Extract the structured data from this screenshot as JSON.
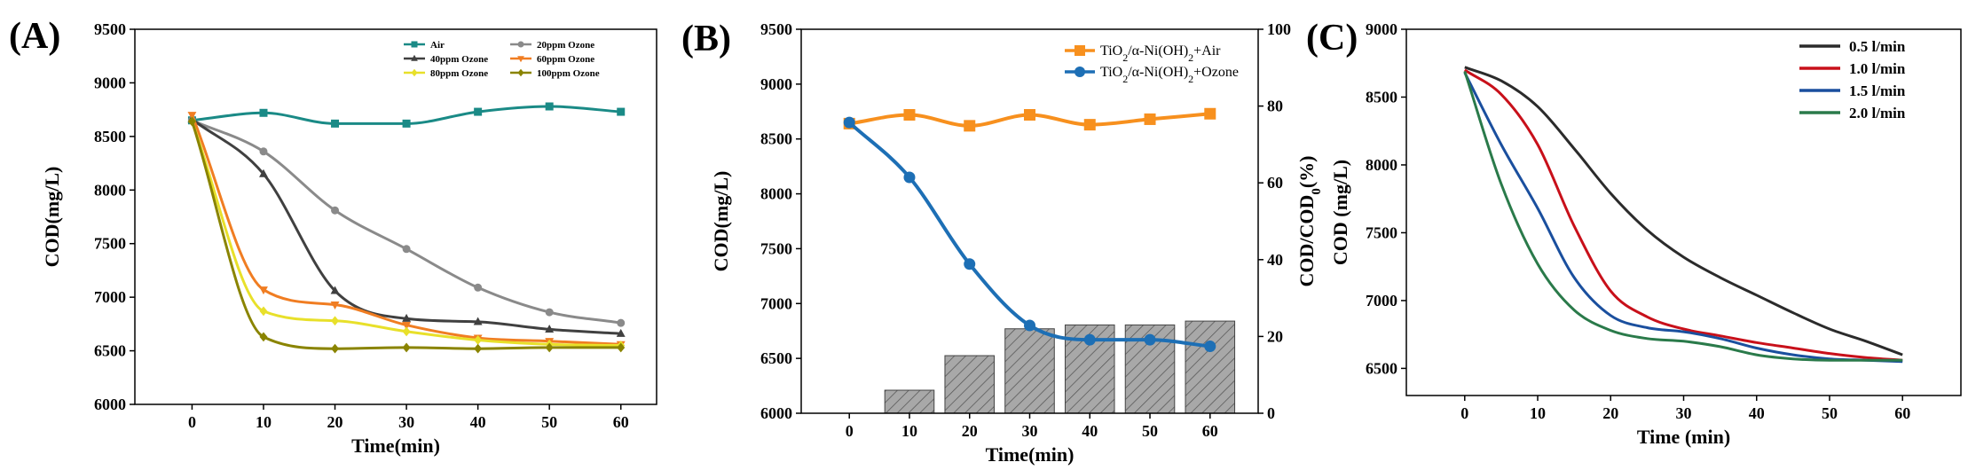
{
  "chart_data": [
    {
      "type": "line",
      "panel_label": "(A)",
      "xlabel": "Time(min)",
      "ylabel": "COD(mg/L)",
      "xlim": [
        -8,
        65
      ],
      "ylim": [
        6000,
        9500
      ],
      "xticks": [
        0,
        10,
        20,
        30,
        40,
        50,
        60
      ],
      "yticks": [
        6000,
        6500,
        7000,
        7500,
        8000,
        8500,
        9000,
        9500
      ],
      "legend_position": "top-right",
      "x": [
        0,
        10,
        20,
        30,
        40,
        50,
        60
      ],
      "series": [
        {
          "name": "Air",
          "color": "#1a8a86",
          "marker": "square",
          "values": [
            8650,
            8720,
            8620,
            8620,
            8730,
            8780,
            8730
          ]
        },
        {
          "name": "20ppm Ozone",
          "color": "#8a8a8a",
          "marker": "circle",
          "values": [
            8650,
            8360,
            7810,
            7450,
            7090,
            6860,
            6760
          ]
        },
        {
          "name": "40ppm Ozone",
          "color": "#404040",
          "marker": "triangle",
          "values": [
            8660,
            8150,
            7060,
            6800,
            6770,
            6700,
            6660
          ]
        },
        {
          "name": "60ppm Ozone",
          "color": "#f07d22",
          "marker": "triangle-down",
          "values": [
            8700,
            7070,
            6930,
            6740,
            6620,
            6590,
            6560
          ]
        },
        {
          "name": "80ppm Ozone",
          "color": "#e8e02a",
          "marker": "diamond",
          "values": [
            8640,
            6870,
            6780,
            6680,
            6600,
            6560,
            6550
          ]
        },
        {
          "name": "100ppm Ozone",
          "color": "#8a8400",
          "marker": "diamond",
          "values": [
            8640,
            6630,
            6520,
            6530,
            6520,
            6530,
            6530
          ]
        }
      ]
    },
    {
      "type": "line+bar",
      "panel_label": "(B)",
      "xlabel": "Time(min)",
      "ylabel": "COD(mg/L)",
      "ylabel_right": "COD/COD₀(%)",
      "ylabel_right_parts": {
        "a": "COD/COD",
        "sub": "0",
        "b": "(%)"
      },
      "xlim": [
        -8,
        68
      ],
      "ylim": [
        6000,
        9500
      ],
      "ylim_right": [
        0,
        100
      ],
      "xticks": [
        0,
        10,
        20,
        30,
        40,
        50,
        60
      ],
      "yticks": [
        6000,
        6500,
        7000,
        7500,
        8000,
        8500,
        9000,
        9500
      ],
      "yticks_right": [
        0,
        20,
        40,
        60,
        80,
        100
      ],
      "legend_position": "top-right",
      "x": [
        0,
        10,
        20,
        30,
        40,
        50,
        60
      ],
      "series": [
        {
          "name": "TiO₂/α-Ni(OH)₂+Air",
          "name_parts": [
            "TiO",
            "2",
            "/α-Ni(OH)",
            "2",
            "+Air"
          ],
          "color": "#f7901e",
          "marker": "square",
          "values": [
            8640,
            8720,
            8620,
            8720,
            8630,
            8680,
            8730
          ]
        },
        {
          "name": "TiO₂/α-Ni(OH)₂+Ozone",
          "name_parts": [
            "TiO",
            "2",
            "/α-Ni(OH)",
            "2",
            "+Ozone"
          ],
          "color": "#1d6fb5",
          "marker": "circle",
          "values": [
            8650,
            8150,
            7360,
            6800,
            6670,
            6670,
            6610
          ]
        }
      ],
      "bars": {
        "x": [
          10,
          20,
          30,
          40,
          50,
          60
        ],
        "values": [
          6,
          15,
          22,
          23,
          23,
          24
        ],
        "axis": "right",
        "color": "#a8a8a8",
        "hatch": true
      }
    },
    {
      "type": "line",
      "panel_label": "(C)",
      "xlabel": "Time (min)",
      "ylabel": "COD (mg/L)",
      "xlim": [
        -8,
        68
      ],
      "ylim": [
        6300,
        9000
      ],
      "xticks": [
        0,
        10,
        20,
        30,
        40,
        50,
        60
      ],
      "yticks": [
        6500,
        7000,
        7500,
        8000,
        8500,
        9000
      ],
      "legend_position": "top-right",
      "x": [
        0,
        5,
        10,
        15,
        20,
        25,
        30,
        35,
        40,
        45,
        50,
        55,
        60
      ],
      "series": [
        {
          "name": "0.5 l/min",
          "color": "#2b2b2b",
          "values": [
            8720,
            8620,
            8430,
            8120,
            7790,
            7520,
            7320,
            7170,
            7040,
            6910,
            6790,
            6700,
            6600
          ]
        },
        {
          "name": "1.0 l/min",
          "color": "#c8101a",
          "values": [
            8700,
            8520,
            8150,
            7550,
            7070,
            6880,
            6790,
            6740,
            6690,
            6650,
            6610,
            6580,
            6560
          ]
        },
        {
          "name": "1.5 l/min",
          "color": "#1a4f9e",
          "values": [
            8680,
            8150,
            7680,
            7170,
            6890,
            6800,
            6770,
            6720,
            6650,
            6600,
            6570,
            6560,
            6550
          ]
        },
        {
          "name": "2.0 l/min",
          "color": "#2a7a4a",
          "values": [
            8690,
            7860,
            7270,
            6930,
            6780,
            6720,
            6700,
            6660,
            6600,
            6570,
            6560,
            6560,
            6560
          ]
        }
      ]
    }
  ]
}
